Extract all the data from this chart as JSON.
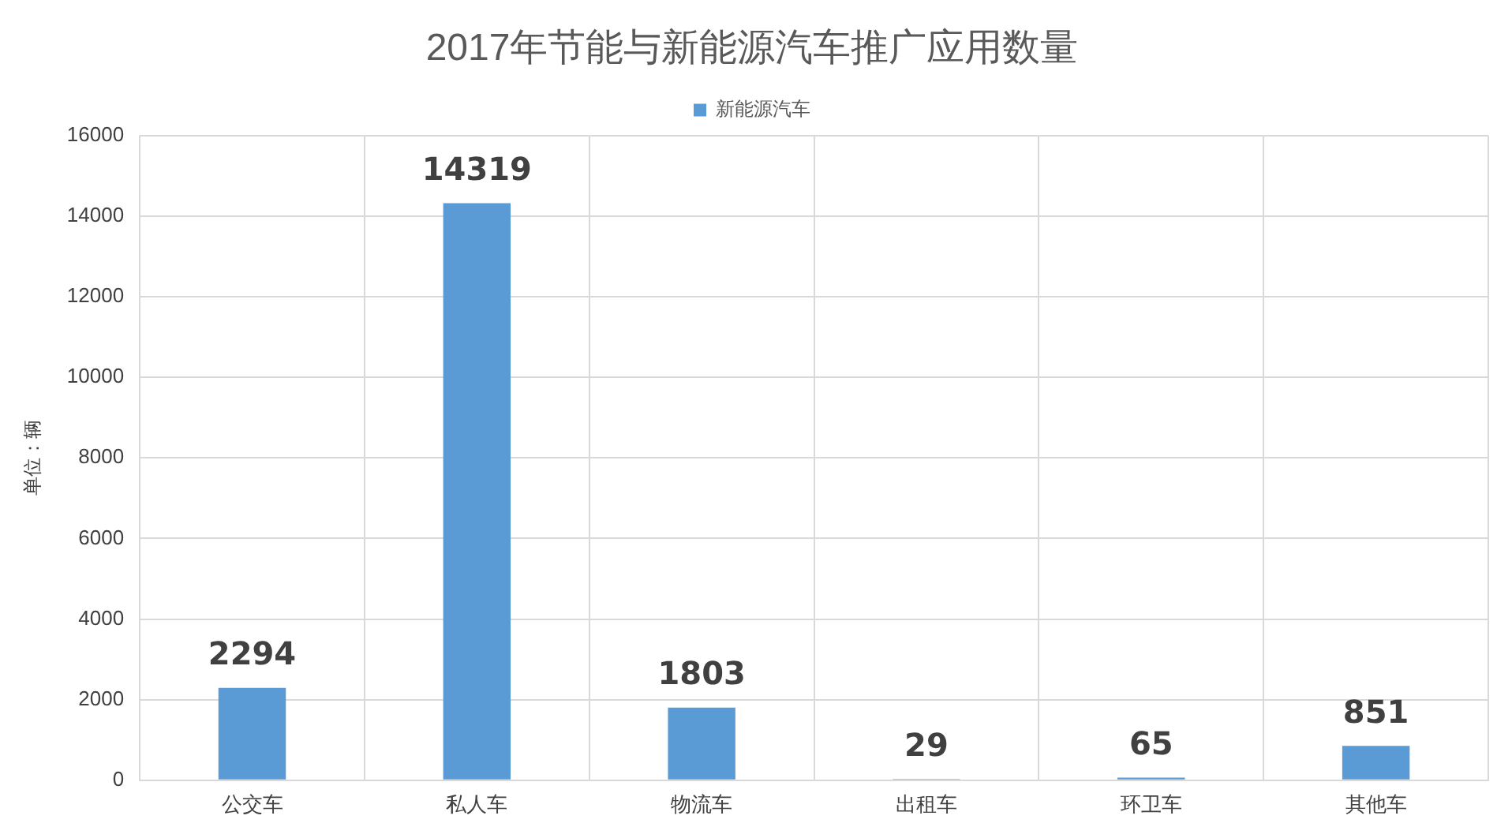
{
  "chart_data": {
    "type": "bar",
    "title": "2017年节能与新能源汽车推广应用数量",
    "ylabel": "单位：辆",
    "categories": [
      "公交车",
      "私人车",
      "物流车",
      "出租车",
      "环卫车",
      "其他车"
    ],
    "series": [
      {
        "name": "新能源汽车",
        "color": "#5b9bd5",
        "values": [
          2294,
          14319,
          1803,
          29,
          65,
          851
        ]
      }
    ],
    "ylim": [
      0,
      16000
    ],
    "yticks": [
      0,
      2000,
      4000,
      6000,
      8000,
      10000,
      12000,
      14000,
      16000
    ],
    "grid": true,
    "legend": "top",
    "data_labels": true
  }
}
